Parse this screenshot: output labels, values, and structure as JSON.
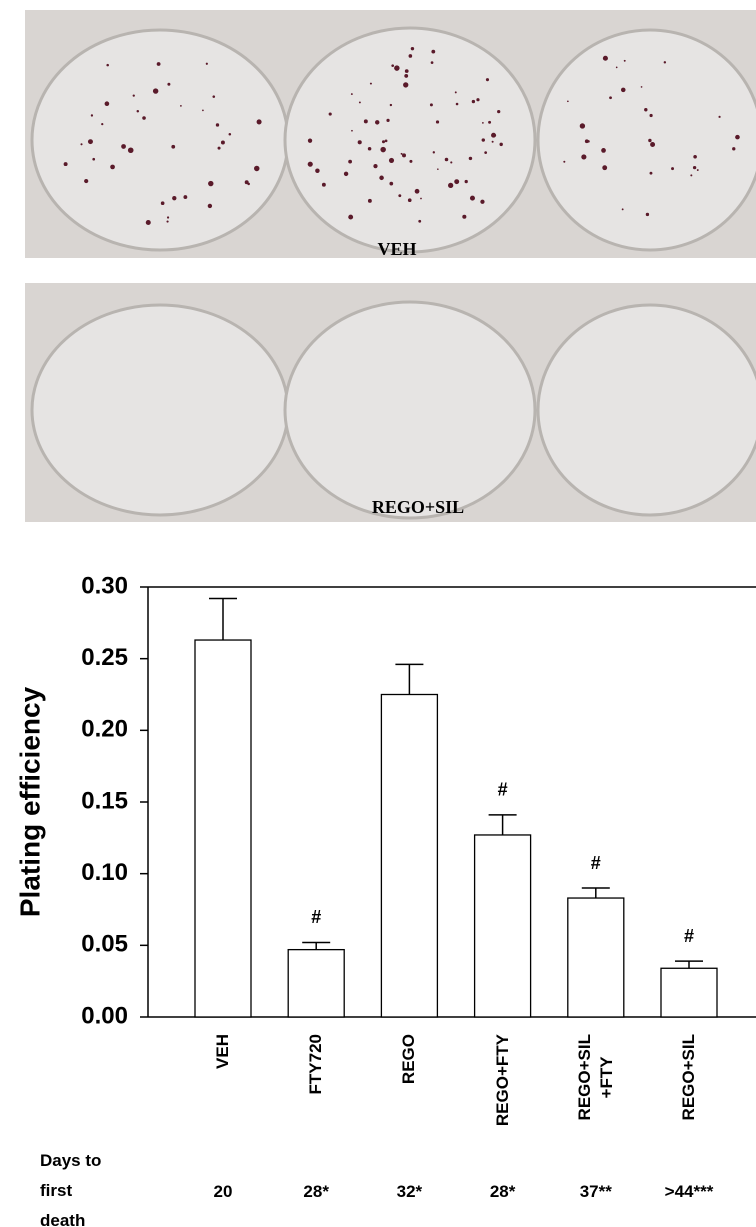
{
  "images": [
    {
      "label": "VEH"
    },
    {
      "label": "REGO+SIL"
    }
  ],
  "chart_data": {
    "type": "bar",
    "y_label": "Plating efficiency",
    "categories": [
      "VEH",
      "FTY720",
      "REGO",
      "REGO+FTY",
      "REGO+SIL\n+FTY",
      "REGO+SIL"
    ],
    "values": [
      0.263,
      0.047,
      0.225,
      0.127,
      0.083,
      0.034
    ],
    "errors": [
      0.029,
      0.005,
      0.021,
      0.014,
      0.007,
      0.005
    ],
    "annotations": [
      null,
      "#",
      null,
      "#",
      "#",
      "#"
    ],
    "color": "#ffffff",
    "ylim": [
      0,
      0.3
    ],
    "yticks": [
      {
        "value": 0,
        "label": "0.00"
      },
      {
        "value": 0.05,
        "label": "0.05"
      },
      {
        "value": 0.1,
        "label": "0.10"
      },
      {
        "value": 0.15,
        "label": "0.15"
      },
      {
        "value": 0.2,
        "label": "0.20"
      },
      {
        "value": 0.25,
        "label": "0.25"
      },
      {
        "value": 0.3,
        "label": "0.30"
      }
    ],
    "days_to_first_death": {
      "label": "Days to first death",
      "values": [
        "20",
        "28*",
        "32*",
        "28*",
        "37**",
        ">44***"
      ]
    }
  }
}
